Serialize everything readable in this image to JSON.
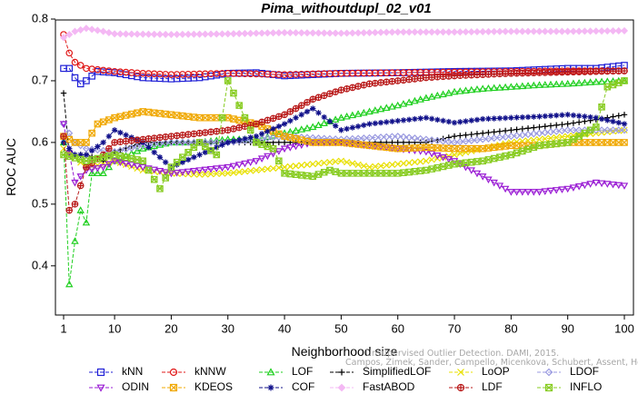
{
  "chart_data": {
    "type": "line",
    "title": "Pima_withoutdupl_02_v01",
    "xlabel": "Neighborhood size",
    "ylabel": "ROC AUC",
    "xlim": [
      1,
      100
    ],
    "ylim": [
      0.35,
      0.8
    ],
    "x_ticks": [
      1,
      10,
      20,
      30,
      40,
      50,
      60,
      70,
      80,
      90,
      100
    ],
    "y_ticks": [
      0.4,
      0.5,
      0.6,
      0.7,
      0.8
    ],
    "grid": false,
    "legend_position": "bottom",
    "watermark": [
      "Unsupervised Outlier Detection. DAMI, 2015.",
      "Campos, Zimek, Sander, Campello, Micenkova, Schubert, Assent, Houle"
    ],
    "series": [
      {
        "name": "kNN",
        "color": "#1f1fd6",
        "marker": "square",
        "points": [
          [
            1,
            0.72
          ],
          [
            2,
            0.72
          ],
          [
            3,
            0.705
          ],
          [
            4,
            0.695
          ],
          [
            5,
            0.7
          ],
          [
            7,
            0.715
          ],
          [
            10,
            0.713
          ],
          [
            15,
            0.705
          ],
          [
            20,
            0.703
          ],
          [
            25,
            0.705
          ],
          [
            30,
            0.712
          ],
          [
            35,
            0.713
          ],
          [
            40,
            0.708
          ],
          [
            50,
            0.712
          ],
          [
            60,
            0.713
          ],
          [
            70,
            0.715
          ],
          [
            80,
            0.716
          ],
          [
            90,
            0.72
          ],
          [
            95,
            0.72
          ],
          [
            100,
            0.725
          ]
        ]
      },
      {
        "name": "kNNW",
        "color": "#e01818",
        "marker": "circle",
        "points": [
          [
            1,
            0.775
          ],
          [
            2,
            0.745
          ],
          [
            3,
            0.73
          ],
          [
            5,
            0.72
          ],
          [
            10,
            0.715
          ],
          [
            15,
            0.712
          ],
          [
            20,
            0.71
          ],
          [
            30,
            0.712
          ],
          [
            40,
            0.71
          ],
          [
            50,
            0.712
          ],
          [
            60,
            0.713
          ],
          [
            70,
            0.714
          ],
          [
            80,
            0.715
          ],
          [
            90,
            0.716
          ],
          [
            100,
            0.716
          ]
        ]
      },
      {
        "name": "LOF",
        "color": "#1ecf1e",
        "marker": "triangle-up",
        "points": [
          [
            1,
            0.6
          ],
          [
            2,
            0.37
          ],
          [
            3,
            0.44
          ],
          [
            4,
            0.49
          ],
          [
            5,
            0.47
          ],
          [
            6,
            0.55
          ],
          [
            8,
            0.55
          ],
          [
            10,
            0.57
          ],
          [
            15,
            0.59
          ],
          [
            20,
            0.6
          ],
          [
            25,
            0.6
          ],
          [
            30,
            0.605
          ],
          [
            35,
            0.605
          ],
          [
            40,
            0.615
          ],
          [
            45,
            0.625
          ],
          [
            50,
            0.64
          ],
          [
            55,
            0.65
          ],
          [
            60,
            0.66
          ],
          [
            65,
            0.672
          ],
          [
            70,
            0.682
          ],
          [
            75,
            0.687
          ],
          [
            80,
            0.69
          ],
          [
            85,
            0.693
          ],
          [
            90,
            0.695
          ],
          [
            95,
            0.698
          ],
          [
            100,
            0.7
          ]
        ]
      },
      {
        "name": "SimplifiedLOF",
        "color": "#000000",
        "marker": "plus",
        "points": [
          [
            1,
            0.68
          ],
          [
            2,
            0.58
          ],
          [
            3,
            0.58
          ],
          [
            5,
            0.58
          ],
          [
            8,
            0.57
          ],
          [
            10,
            0.585
          ],
          [
            15,
            0.6
          ],
          [
            20,
            0.6
          ],
          [
            25,
            0.6
          ],
          [
            30,
            0.6
          ],
          [
            35,
            0.6
          ],
          [
            40,
            0.6
          ],
          [
            45,
            0.6
          ],
          [
            50,
            0.6
          ],
          [
            55,
            0.6
          ],
          [
            60,
            0.6
          ],
          [
            65,
            0.6
          ],
          [
            70,
            0.61
          ],
          [
            75,
            0.615
          ],
          [
            80,
            0.62
          ],
          [
            85,
            0.625
          ],
          [
            90,
            0.63
          ],
          [
            95,
            0.637
          ],
          [
            100,
            0.645
          ]
        ]
      },
      {
        "name": "LoOP",
        "color": "#e8e000",
        "marker": "x",
        "points": [
          [
            1,
            0.59
          ],
          [
            3,
            0.575
          ],
          [
            5,
            0.56
          ],
          [
            8,
            0.565
          ],
          [
            10,
            0.57
          ],
          [
            15,
            0.555
          ],
          [
            20,
            0.55
          ],
          [
            25,
            0.548
          ],
          [
            30,
            0.55
          ],
          [
            35,
            0.555
          ],
          [
            40,
            0.56
          ],
          [
            45,
            0.565
          ],
          [
            50,
            0.57
          ],
          [
            55,
            0.56
          ],
          [
            60,
            0.565
          ],
          [
            65,
            0.57
          ],
          [
            70,
            0.58
          ],
          [
            75,
            0.59
          ],
          [
            80,
            0.6
          ],
          [
            85,
            0.605
          ],
          [
            90,
            0.61
          ],
          [
            95,
            0.615
          ],
          [
            100,
            0.62
          ]
        ]
      },
      {
        "name": "LDOF",
        "color": "#9a9ae0",
        "marker": "diamond",
        "points": [
          [
            1,
            0.63
          ],
          [
            3,
            0.6
          ],
          [
            5,
            0.59
          ],
          [
            10,
            0.585
          ],
          [
            15,
            0.595
          ],
          [
            20,
            0.6
          ],
          [
            25,
            0.6
          ],
          [
            30,
            0.6
          ],
          [
            40,
            0.61
          ],
          [
            50,
            0.605
          ],
          [
            60,
            0.61
          ],
          [
            70,
            0.6
          ],
          [
            80,
            0.61
          ],
          [
            90,
            0.62
          ],
          [
            100,
            0.62
          ]
        ]
      },
      {
        "name": "ODIN",
        "color": "#9a1cd4",
        "marker": "triangle-down",
        "points": [
          [
            1,
            0.63
          ],
          [
            3,
            0.535
          ],
          [
            5,
            0.555
          ],
          [
            8,
            0.56
          ],
          [
            10,
            0.57
          ],
          [
            15,
            0.56
          ],
          [
            20,
            0.55
          ],
          [
            25,
            0.555
          ],
          [
            30,
            0.56
          ],
          [
            35,
            0.57
          ],
          [
            40,
            0.59
          ],
          [
            45,
            0.6
          ],
          [
            50,
            0.6
          ],
          [
            55,
            0.595
          ],
          [
            60,
            0.59
          ],
          [
            65,
            0.585
          ],
          [
            70,
            0.57
          ],
          [
            75,
            0.545
          ],
          [
            80,
            0.52
          ],
          [
            85,
            0.52
          ],
          [
            90,
            0.525
          ],
          [
            95,
            0.535
          ],
          [
            100,
            0.53
          ]
        ]
      },
      {
        "name": "KDEOS",
        "color": "#f0a800",
        "marker": "square-x",
        "points": [
          [
            1,
            0.61
          ],
          [
            3,
            0.6
          ],
          [
            5,
            0.6
          ],
          [
            7,
            0.63
          ],
          [
            10,
            0.64
          ],
          [
            15,
            0.65
          ],
          [
            20,
            0.645
          ],
          [
            25,
            0.64
          ],
          [
            30,
            0.64
          ],
          [
            35,
            0.63
          ],
          [
            40,
            0.61
          ],
          [
            45,
            0.6
          ],
          [
            50,
            0.6
          ],
          [
            55,
            0.595
          ],
          [
            60,
            0.59
          ],
          [
            65,
            0.592
          ],
          [
            70,
            0.59
          ],
          [
            75,
            0.59
          ],
          [
            80,
            0.595
          ],
          [
            85,
            0.595
          ],
          [
            90,
            0.6
          ],
          [
            95,
            0.6
          ],
          [
            100,
            0.6
          ]
        ]
      },
      {
        "name": "COF",
        "color": "#10108a",
        "marker": "asterisk",
        "points": [
          [
            1,
            0.6
          ],
          [
            3,
            0.58
          ],
          [
            5,
            0.58
          ],
          [
            8,
            0.6
          ],
          [
            10,
            0.62
          ],
          [
            15,
            0.6
          ],
          [
            20,
            0.56
          ],
          [
            25,
            0.58
          ],
          [
            30,
            0.6
          ],
          [
            35,
            0.61
          ],
          [
            40,
            0.63
          ],
          [
            45,
            0.655
          ],
          [
            50,
            0.62
          ],
          [
            55,
            0.63
          ],
          [
            60,
            0.635
          ],
          [
            65,
            0.64
          ],
          [
            70,
            0.632
          ],
          [
            75,
            0.638
          ],
          [
            80,
            0.64
          ],
          [
            85,
            0.642
          ],
          [
            90,
            0.645
          ],
          [
            95,
            0.64
          ],
          [
            100,
            0.63
          ]
        ]
      },
      {
        "name": "FastABOD",
        "color": "#f4b8f4",
        "marker": "diamond-filled",
        "points": [
          [
            1,
            0.77
          ],
          [
            3,
            0.78
          ],
          [
            5,
            0.785
          ],
          [
            8,
            0.78
          ],
          [
            10,
            0.776
          ],
          [
            20,
            0.775
          ],
          [
            30,
            0.776
          ],
          [
            40,
            0.778
          ],
          [
            50,
            0.777
          ],
          [
            60,
            0.779
          ],
          [
            70,
            0.779
          ],
          [
            80,
            0.78
          ],
          [
            90,
            0.78
          ],
          [
            100,
            0.781
          ]
        ]
      },
      {
        "name": "LDF",
        "color": "#b81818",
        "marker": "circle-plus",
        "points": [
          [
            1,
            0.61
          ],
          [
            2,
            0.49
          ],
          [
            3,
            0.5
          ],
          [
            5,
            0.56
          ],
          [
            8,
            0.58
          ],
          [
            10,
            0.6
          ],
          [
            15,
            0.605
          ],
          [
            20,
            0.61
          ],
          [
            25,
            0.615
          ],
          [
            30,
            0.62
          ],
          [
            35,
            0.63
          ],
          [
            40,
            0.645
          ],
          [
            45,
            0.67
          ],
          [
            50,
            0.685
          ],
          [
            55,
            0.695
          ],
          [
            60,
            0.7
          ],
          [
            65,
            0.705
          ],
          [
            70,
            0.708
          ],
          [
            75,
            0.71
          ],
          [
            80,
            0.712
          ],
          [
            85,
            0.713
          ],
          [
            90,
            0.714
          ],
          [
            95,
            0.715
          ],
          [
            100,
            0.716
          ]
        ]
      },
      {
        "name": "INFLO",
        "color": "#88cc22",
        "marker": "hourglass",
        "points": [
          [
            1,
            0.58
          ],
          [
            3,
            0.575
          ],
          [
            5,
            0.57
          ],
          [
            10,
            0.58
          ],
          [
            15,
            0.57
          ],
          [
            18,
            0.525
          ],
          [
            20,
            0.56
          ],
          [
            25,
            0.6
          ],
          [
            28,
            0.58
          ],
          [
            30,
            0.7
          ],
          [
            32,
            0.66
          ],
          [
            35,
            0.6
          ],
          [
            38,
            0.59
          ],
          [
            40,
            0.55
          ],
          [
            45,
            0.545
          ],
          [
            48,
            0.555
          ],
          [
            50,
            0.55
          ],
          [
            55,
            0.55
          ],
          [
            60,
            0.55
          ],
          [
            65,
            0.555
          ],
          [
            70,
            0.565
          ],
          [
            75,
            0.57
          ],
          [
            80,
            0.58
          ],
          [
            85,
            0.595
          ],
          [
            90,
            0.6
          ],
          [
            95,
            0.625
          ],
          [
            97,
            0.69
          ],
          [
            100,
            0.7
          ]
        ]
      }
    ]
  }
}
